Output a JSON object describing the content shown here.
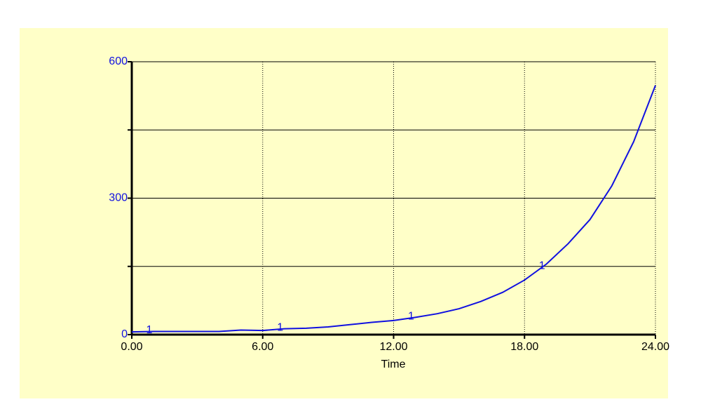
{
  "chart_data": {
    "type": "line",
    "x": [
      0,
      1,
      2,
      3,
      4,
      5,
      6,
      7,
      8,
      9,
      10,
      11,
      12,
      13,
      14,
      15,
      16,
      17,
      18,
      19,
      20,
      21,
      22,
      23,
      24
    ],
    "series": [
      {
        "name": "1",
        "color": "#1010e0",
        "values": [
          6,
          7,
          7,
          7,
          7,
          10,
          9,
          13,
          14,
          17,
          22,
          27,
          31,
          38,
          46,
          57,
          73,
          93,
          120,
          155,
          200,
          253,
          327,
          424,
          548
        ]
      }
    ],
    "xlabel": "Time",
    "xlim": [
      0,
      24
    ],
    "xticks": [
      {
        "value": 0,
        "label": "0.00"
      },
      {
        "value": 6,
        "label": "6.00"
      },
      {
        "value": 12,
        "label": "12.00"
      },
      {
        "value": 18,
        "label": "18.00"
      },
      {
        "value": 24,
        "label": "24.00"
      }
    ],
    "ylim": [
      0,
      600
    ],
    "yticks": [
      0,
      300,
      600
    ],
    "ygrid": [
      150,
      300,
      450
    ],
    "grid": true
  }
}
